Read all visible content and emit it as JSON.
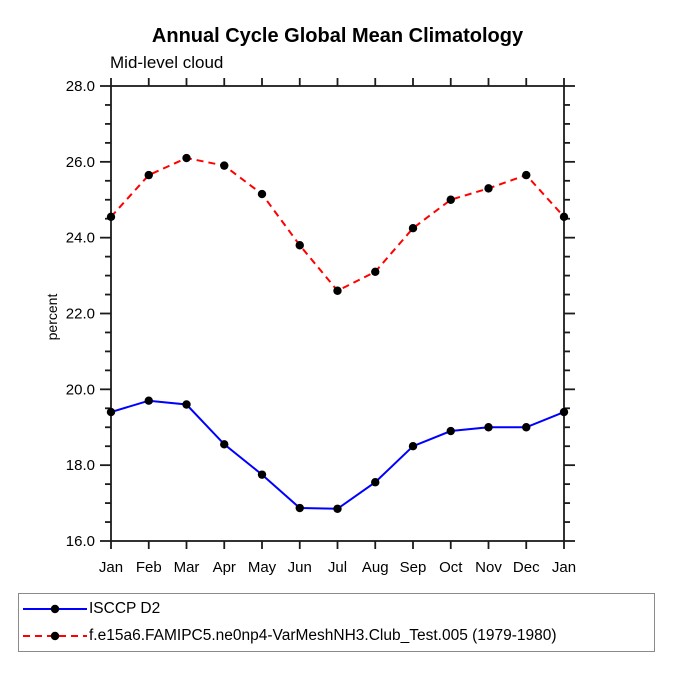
{
  "chart_data": {
    "type": "line",
    "title": "Annual Cycle Global Mean Climatology",
    "subtitle": "Mid-level cloud",
    "xlabel": "",
    "ylabel": "percent",
    "categories": [
      "Jan",
      "Feb",
      "Mar",
      "Apr",
      "May",
      "Jun",
      "Jul",
      "Aug",
      "Sep",
      "Oct",
      "Nov",
      "Dec",
      "Jan"
    ],
    "series": [
      {
        "name": "ISCCP D2",
        "color": "#0000ff",
        "dash": false,
        "marker": "circle",
        "marker_color": "#000000",
        "values": [
          19.4,
          19.7,
          19.6,
          18.55,
          17.75,
          16.87,
          16.85,
          17.55,
          18.5,
          18.9,
          19.0,
          19.0,
          19.4
        ]
      },
      {
        "name": "f.e15a6.FAMIPC5.ne0np4-VarMeshNH3.Club_Test.005 (1979-1980)",
        "color": "#ff0000",
        "dash": true,
        "marker": "circle",
        "marker_color": "#000000",
        "values": [
          24.55,
          25.65,
          26.1,
          25.9,
          25.15,
          23.8,
          22.6,
          23.1,
          24.25,
          25.0,
          25.3,
          25.65,
          24.55
        ]
      }
    ],
    "ylim": [
      16.0,
      28.0
    ],
    "y_major_step": 2.0,
    "y_minor_step": 0.5,
    "y_tick_labels": [
      "16.0",
      "18.0",
      "20.0",
      "22.0",
      "24.0",
      "26.0",
      "28.0"
    ],
    "grid": false,
    "legend_position": "bottom",
    "axis_color": "#1b1b1b"
  }
}
